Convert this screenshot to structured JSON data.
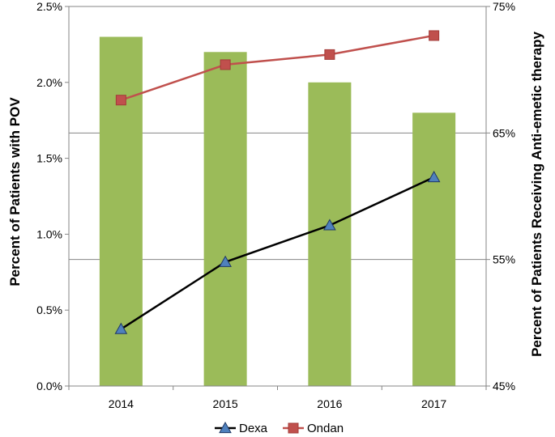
{
  "chart_data": {
    "type": "bar",
    "categories": [
      "2014",
      "2015",
      "2016",
      "2017"
    ],
    "bar_series": {
      "values": [
        2.3,
        2.2,
        2.0,
        1.8
      ],
      "color": "#9bbb59"
    },
    "line_series": [
      {
        "name": "Dexa",
        "values": [
          49.5,
          54.8,
          57.7,
          61.5
        ],
        "line_color": "#000000",
        "marker_color": "#4f81bd",
        "marker": "triangle"
      },
      {
        "name": "Ondan",
        "values": [
          67.6,
          70.4,
          71.2,
          72.7
        ],
        "line_color": "#c0504d",
        "marker_color": "#c0504d",
        "marker": "square"
      }
    ],
    "y_left": {
      "label": "Percent of Patients with POV",
      "lim": [
        0,
        2.5
      ],
      "ticks": [
        0,
        0.5,
        1.0,
        1.5,
        2.0,
        2.5
      ],
      "tick_labels": [
        "0.0%",
        "0.5%",
        "1.0%",
        "1.5%",
        "2.0%",
        "2.5%"
      ]
    },
    "y_right": {
      "label": "Percent of Patients Receiving Anti-emetic therapy",
      "lim": [
        45,
        75
      ],
      "ticks": [
        45,
        55,
        65,
        75
      ],
      "tick_labels": [
        "45%",
        "55%",
        "65%",
        "75%"
      ]
    },
    "grid": "horizontal at right-axis ticks",
    "legend": {
      "position": "bottom",
      "entries": [
        "Dexa",
        "Ondan"
      ]
    }
  }
}
